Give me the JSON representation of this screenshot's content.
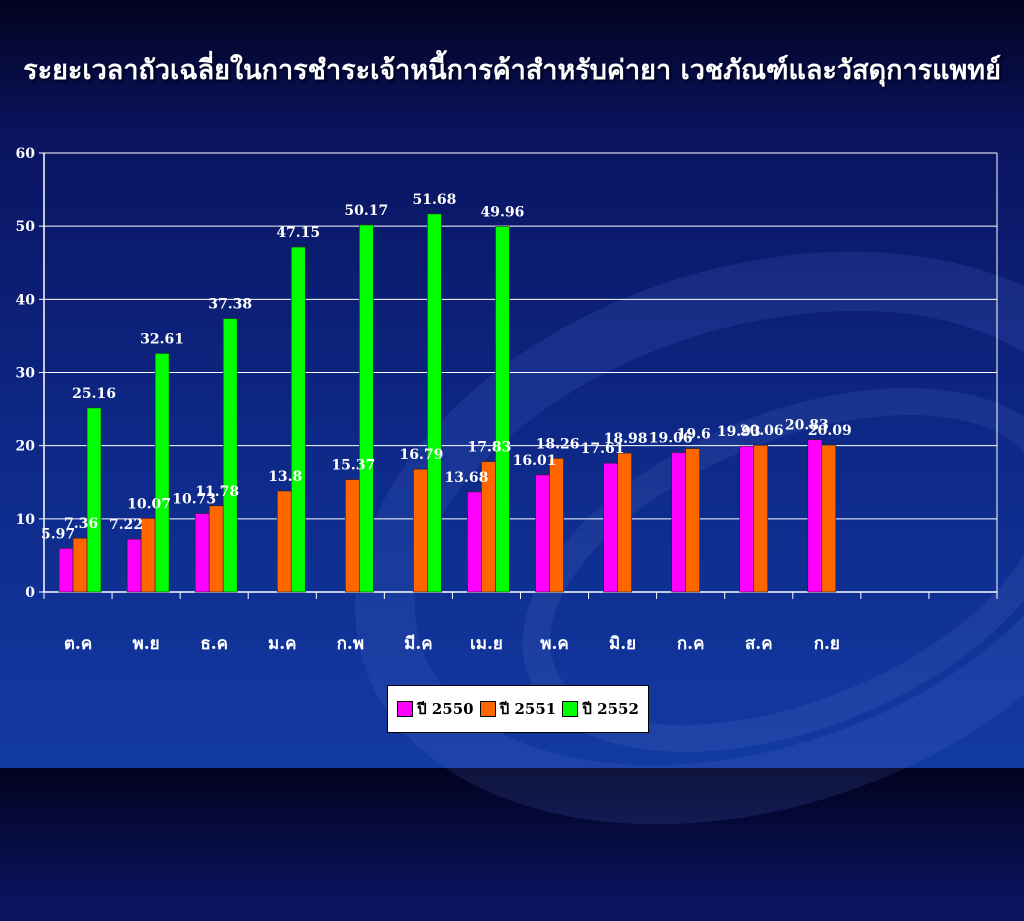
{
  "title": "ระยะเวลาถัวเฉลี่ยในการชำระเจ้าหนี้การค้าสำหรับค่ายา เวชภัณฑ์และวัสดุการแพทย์",
  "chart_data": {
    "type": "bar",
    "categories": [
      "ต.ค",
      "พ.ย",
      "ธ.ค",
      "ม.ค",
      "ก.พ",
      "มี.ค",
      "เม.ย",
      "พ.ค",
      "มิ.ย",
      "ก.ค",
      "ส.ค",
      "ก.ย",
      "",
      ""
    ],
    "series": [
      {
        "name": "ปี 2550",
        "color": "#ff00ff",
        "values": [
          5.97,
          7.22,
          10.73,
          null,
          null,
          null,
          13.68,
          16.01,
          17.61,
          19.06,
          19.93,
          20.83,
          null,
          null
        ]
      },
      {
        "name": "ปี 2551",
        "color": "#ff6600",
        "values": [
          7.36,
          10.07,
          11.78,
          13.8,
          15.37,
          16.79,
          17.83,
          18.26,
          18.98,
          19.6,
          20.06,
          20.09,
          null,
          null
        ]
      },
      {
        "name": "ปี 2552",
        "color": "#00ff00",
        "values": [
          25.16,
          32.61,
          37.38,
          47.15,
          50.17,
          51.68,
          49.96,
          null,
          null,
          null,
          null,
          null,
          null,
          null
        ]
      }
    ],
    "y_ticks": [
      0,
      10,
      20,
      30,
      40,
      50,
      60
    ],
    "ylim": [
      0,
      60
    ],
    "grid": true,
    "legend_position": "bottom"
  }
}
